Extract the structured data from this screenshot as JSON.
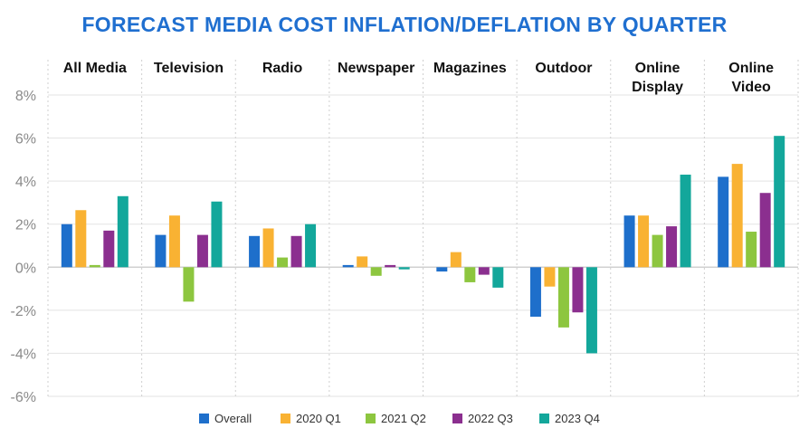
{
  "chart_data": {
    "type": "bar",
    "title": "FORECAST MEDIA COST INFLATION/DEFLATION BY QUARTER",
    "xlabel": "",
    "ylabel": "",
    "categories": [
      [
        "All Media"
      ],
      [
        "Television"
      ],
      [
        "Radio"
      ],
      [
        "Newspaper"
      ],
      [
        "Magazines"
      ],
      [
        "Outdoor"
      ],
      [
        "Online",
        "Display"
      ],
      [
        "Online",
        "Video"
      ]
    ],
    "ylim": [
      -6,
      8
    ],
    "yticks": [
      8,
      6,
      4,
      2,
      0,
      -2,
      -4,
      -6
    ],
    "ytick_labels": [
      "8%",
      "6%",
      "4%",
      "2%",
      "0%",
      "-2%",
      "-4%",
      "-6%"
    ],
    "grid": true,
    "legend_position": "bottom",
    "series": [
      {
        "name": "Overall",
        "color": "#1e6fcb",
        "values": [
          2.0,
          1.5,
          1.45,
          0.1,
          -0.2,
          -2.3,
          2.4,
          4.2
        ]
      },
      {
        "name": "2020 Q1",
        "color": "#f9b233",
        "values": [
          2.65,
          2.4,
          1.8,
          0.5,
          0.7,
          -0.9,
          2.4,
          4.8
        ]
      },
      {
        "name": "2021 Q2",
        "color": "#8dc63f",
        "values": [
          0.1,
          -1.6,
          0.45,
          -0.4,
          -0.7,
          -2.8,
          1.5,
          1.65
        ]
      },
      {
        "name": "2022 Q3",
        "color": "#8b2f8f",
        "values": [
          1.7,
          1.5,
          1.45,
          0.1,
          -0.35,
          -2.1,
          1.9,
          3.45
        ]
      },
      {
        "name": "2023 Q4",
        "color": "#13a79b",
        "values": [
          3.3,
          3.05,
          2.0,
          -0.1,
          -0.95,
          -4.0,
          4.3,
          6.1
        ]
      }
    ]
  }
}
